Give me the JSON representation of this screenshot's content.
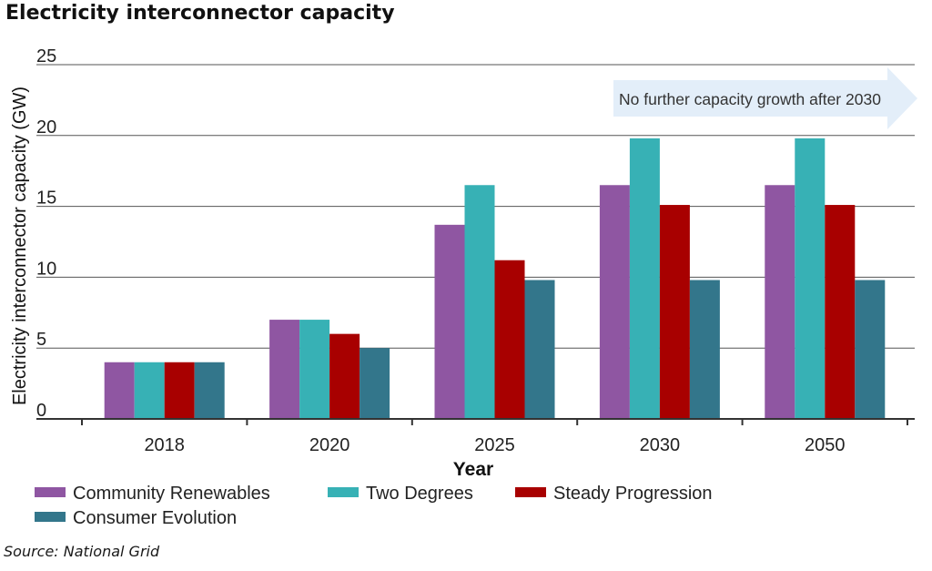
{
  "title": "Electricity interconnector capacity",
  "source": "Source: National Grid",
  "annotation": "No further capacity growth after 2030",
  "colors": {
    "community": "#8f56a2",
    "two_degrees": "#37b1b5",
    "steady": "#a80000",
    "consumer": "#33768b",
    "arrow": "#e3eef9",
    "grid": "#555555"
  },
  "chart_data": {
    "type": "bar",
    "title": "Electricity interconnector capacity",
    "xlabel": "Year",
    "ylabel": "Electricity interconnector capacity (GW)",
    "ylim": [
      0,
      25
    ],
    "yticks": [
      0,
      5,
      10,
      15,
      20,
      25
    ],
    "grid": true,
    "legend": "bottom",
    "categories": [
      "2018",
      "2020",
      "2025",
      "2030",
      "2050"
    ],
    "series": [
      {
        "name": "Community Renewables",
        "color": "#8f56a2",
        "values": [
          4,
          7,
          13.7,
          16.5,
          16.5
        ]
      },
      {
        "name": "Two Degrees",
        "color": "#37b1b5",
        "values": [
          4,
          7,
          16.5,
          19.8,
          19.8
        ]
      },
      {
        "name": "Steady Progression",
        "color": "#a80000",
        "values": [
          4,
          6,
          11.2,
          15.1,
          15.1
        ]
      },
      {
        "name": "Consumer Evolution",
        "color": "#33768b",
        "values": [
          4,
          5,
          9.8,
          9.8,
          9.8
        ]
      }
    ]
  }
}
